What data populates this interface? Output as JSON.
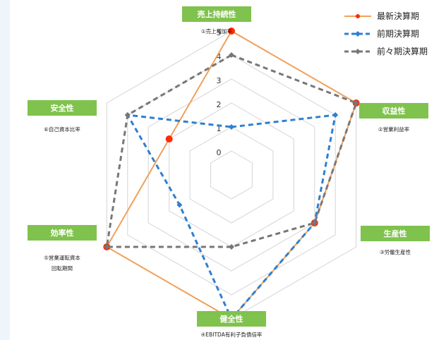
{
  "chart_data": {
    "type": "radar",
    "axes": [
      {
        "name": "売上持続性",
        "metric": "①売上増加率"
      },
      {
        "name": "収益性",
        "metric": "②営業利益率"
      },
      {
        "name": "生産性",
        "metric": "③労働生産性"
      },
      {
        "name": "健全性",
        "metric": "④EBITDA有利子負債倍率"
      },
      {
        "name": "効率性",
        "metric": [
          "⑤営業運転資本",
          "回転期間"
        ]
      },
      {
        "name": "安全性",
        "metric": "⑥自己資本比率"
      }
    ],
    "rlim": [
      0,
      5
    ],
    "ticks": [
      "0",
      "1",
      "2",
      "3",
      "4",
      "5"
    ],
    "series": [
      {
        "name": "最新決算期",
        "values": [
          5,
          5,
          3,
          5,
          5,
          2
        ],
        "color": "#f0a05a",
        "marker": "#ff2a00",
        "dash": "solid"
      },
      {
        "name": "前期決算期",
        "values": [
          1,
          4,
          3,
          5,
          1.5,
          4
        ],
        "color": "#2f7fd0",
        "marker": "#2f7fd0",
        "dash": "dashed"
      },
      {
        "name": "前々期決算期",
        "values": [
          4,
          5,
          3,
          2,
          5,
          4
        ],
        "color": "#777777",
        "marker": "#777777",
        "dash": "dashed"
      }
    ],
    "legend_position": "top-right"
  }
}
